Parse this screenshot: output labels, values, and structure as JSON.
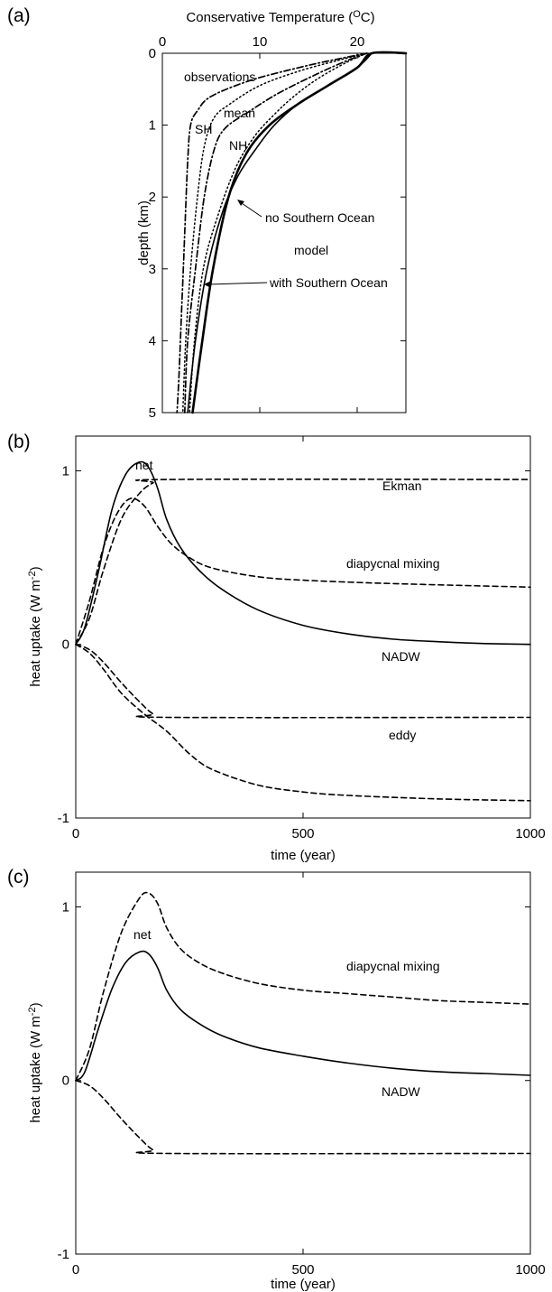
{
  "chart_data": [
    {
      "panel_label": "(a)",
      "type": "line",
      "xlabel": "Conservative Temperature (",
      "xlabel_sup": "O",
      "xlabel_end": "C)",
      "ylabel": "depth (km)",
      "xlim": [
        0,
        25
      ],
      "ylim": [
        0,
        5
      ],
      "xticks": [
        "0",
        "10",
        "20"
      ],
      "xtick_values": [
        0,
        10,
        20
      ],
      "yticks": [
        "0",
        "1",
        "2",
        "3",
        "4",
        "5"
      ],
      "ytick_values": [
        0,
        1,
        2,
        3,
        4,
        5
      ],
      "series": [
        {
          "name": "SH",
          "style": "dashdot",
          "points": [
            [
              21,
              0
            ],
            [
              18,
              0.08
            ],
            [
              14,
              0.2
            ],
            [
              9,
              0.38
            ],
            [
              5,
              0.6
            ],
            [
              3.6,
              0.8
            ],
            [
              2.9,
              1.0
            ],
            [
              2.6,
              1.5
            ],
            [
              2.3,
              2.5
            ],
            [
              2.0,
              3.5
            ],
            [
              1.7,
              4.5
            ],
            [
              1.5,
              5.0
            ]
          ]
        },
        {
          "name": "mean",
          "style": "dotted",
          "points": [
            [
              21,
              0
            ],
            [
              18,
              0.1
            ],
            [
              14,
              0.25
            ],
            [
              10,
              0.45
            ],
            [
              7,
              0.7
            ],
            [
              5.3,
              0.9
            ],
            [
              4.3,
              1.3
            ],
            [
              3.6,
              2.0
            ],
            [
              2.9,
              3.0
            ],
            [
              2.4,
              4.0
            ],
            [
              2.1,
              5.0
            ]
          ]
        },
        {
          "name": "NH",
          "style": "dashdot",
          "points": [
            [
              21,
              0
            ],
            [
              19,
              0.1
            ],
            [
              16,
              0.28
            ],
            [
              12,
              0.55
            ],
            [
              8.8,
              0.82
            ],
            [
              6.4,
              1.05
            ],
            [
              5.3,
              1.35
            ],
            [
              4.3,
              2.0
            ],
            [
              3.4,
              3.0
            ],
            [
              2.6,
              4.0
            ],
            [
              2.3,
              5.0
            ]
          ]
        },
        {
          "name": "observations",
          "style": "dotted",
          "points": [
            [
              21,
              0
            ],
            [
              19,
              0.12
            ],
            [
              16,
              0.35
            ],
            [
              13.5,
              0.6
            ],
            [
              11.5,
              0.85
            ],
            [
              9.5,
              1.15
            ],
            [
              7.5,
              1.6
            ],
            [
              5.6,
              2.3
            ],
            [
              4.2,
              3.0
            ],
            [
              3.3,
              4.0
            ],
            [
              2.8,
              5.0
            ]
          ]
        },
        {
          "name": "no Southern Ocean",
          "style": "solid-thick",
          "points": [
            [
              25,
              0
            ],
            [
              21.5,
              0
            ],
            [
              20,
              0.2
            ],
            [
              17,
              0.45
            ],
            [
              14,
              0.7
            ],
            [
              11,
              1.0
            ],
            [
              8.6,
              1.4
            ],
            [
              6.8,
              2.0
            ],
            [
              5.2,
              3.0
            ],
            [
              4.1,
              4.0
            ],
            [
              3.1,
              5.0
            ]
          ]
        },
        {
          "name": "with Southern Ocean",
          "style": "solid",
          "points": [
            [
              21.5,
              0
            ],
            [
              20,
              0.2
            ],
            [
              17,
              0.45
            ],
            [
              14,
              0.7
            ],
            [
              11.5,
              1.0
            ],
            [
              9.5,
              1.35
            ],
            [
              7.8,
              1.7
            ],
            [
              6.2,
              2.2
            ],
            [
              4.6,
              3.0
            ],
            [
              3.4,
              4.0
            ],
            [
              2.6,
              5.0
            ]
          ]
        }
      ],
      "annotations": {
        "observations": "observations",
        "mean": "mean",
        "SH": "SH",
        "NH": "NH",
        "no_so": "no Southern Ocean",
        "model": "model",
        "with_so": "with Southern Ocean"
      }
    },
    {
      "panel_label": "(b)",
      "type": "line",
      "xlabel": "time (year)",
      "ylabel": "heat uptake (W m",
      "ylabel_sup": "-2",
      "ylabel_end": ")",
      "xlim": [
        0,
        1000
      ],
      "ylim": [
        -1,
        1.2
      ],
      "xticks": [
        "0",
        "500",
        "1000"
      ],
      "xtick_values": [
        0,
        500,
        1000
      ],
      "yticks": [
        "-1",
        "0",
        "1"
      ],
      "ytick_values": [
        -1,
        0,
        1
      ],
      "series": [
        {
          "name": "net",
          "style": "solid",
          "points": [
            [
              0,
              0
            ],
            [
              20,
              0.1
            ],
            [
              50,
              0.42
            ],
            [
              80,
              0.78
            ],
            [
              110,
              0.98
            ],
            [
              140,
              1.05
            ],
            [
              160,
              1.02
            ],
            [
              180,
              0.9
            ],
            [
              200,
              0.72
            ],
            [
              230,
              0.56
            ],
            [
              270,
              0.43
            ],
            [
              320,
              0.32
            ],
            [
              400,
              0.2
            ],
            [
              500,
              0.11
            ],
            [
              600,
              0.06
            ],
            [
              700,
              0.03
            ],
            [
              800,
              0.015
            ],
            [
              900,
              0.005
            ],
            [
              1000,
              0.0
            ]
          ]
        },
        {
          "name": "Ekman",
          "style": "dashed",
          "points": [
            [
              0,
              0
            ],
            [
              30,
              0.15
            ],
            [
              60,
              0.42
            ],
            [
              100,
              0.72
            ],
            [
              140,
              0.87
            ],
            [
              170,
              0.93
            ],
            [
              200,
              0.95
            ],
            [
              1000,
              0.95
            ]
          ]
        },
        {
          "name": "diapycnal mixing",
          "style": "dashed",
          "points": [
            [
              0,
              0
            ],
            [
              30,
              0.25
            ],
            [
              60,
              0.55
            ],
            [
              90,
              0.75
            ],
            [
              120,
              0.84
            ],
            [
              150,
              0.8
            ],
            [
              180,
              0.68
            ],
            [
              210,
              0.58
            ],
            [
              250,
              0.5
            ],
            [
              300,
              0.44
            ],
            [
              400,
              0.39
            ],
            [
              500,
              0.37
            ],
            [
              700,
              0.35
            ],
            [
              1000,
              0.33
            ]
          ]
        },
        {
          "name": "NADW",
          "style": "dashed",
          "points": [
            [
              0,
              0
            ],
            [
              30,
              -0.03
            ],
            [
              60,
              -0.1
            ],
            [
              100,
              -0.22
            ],
            [
              140,
              -0.33
            ],
            [
              170,
              -0.4
            ],
            [
              200,
              -0.42
            ],
            [
              1000,
              -0.42
            ]
          ]
        },
        {
          "name": "eddy",
          "style": "dashed",
          "points": [
            [
              0,
              0
            ],
            [
              30,
              -0.05
            ],
            [
              60,
              -0.14
            ],
            [
              100,
              -0.28
            ],
            [
              150,
              -0.4
            ],
            [
              200,
              -0.5
            ],
            [
              250,
              -0.63
            ],
            [
              300,
              -0.72
            ],
            [
              400,
              -0.81
            ],
            [
              500,
              -0.85
            ],
            [
              600,
              -0.87
            ],
            [
              800,
              -0.89
            ],
            [
              1000,
              -0.9
            ]
          ]
        }
      ],
      "annotations": {
        "net": "net",
        "ekman": "Ekman",
        "diapycnal": "diapycnal mixing",
        "nadw": "NADW",
        "eddy": "eddy"
      }
    },
    {
      "panel_label": "(c)",
      "type": "line",
      "xlabel": "time (year)",
      "ylabel": "heat uptake (W m",
      "ylabel_sup": "-2",
      "ylabel_end": ")",
      "xlim": [
        0,
        1000
      ],
      "ylim": [
        -1,
        1.2
      ],
      "xticks": [
        "0",
        "500",
        "1000"
      ],
      "xtick_values": [
        0,
        500,
        1000
      ],
      "yticks": [
        "-1",
        "0",
        "1"
      ],
      "ytick_values": [
        -1,
        0,
        1
      ],
      "series": [
        {
          "name": "net",
          "style": "solid",
          "points": [
            [
              0,
              0
            ],
            [
              20,
              0.05
            ],
            [
              50,
              0.3
            ],
            [
              80,
              0.53
            ],
            [
              110,
              0.68
            ],
            [
              140,
              0.74
            ],
            [
              160,
              0.73
            ],
            [
              180,
              0.65
            ],
            [
              200,
              0.52
            ],
            [
              230,
              0.41
            ],
            [
              270,
              0.33
            ],
            [
              320,
              0.26
            ],
            [
              400,
              0.19
            ],
            [
              500,
              0.14
            ],
            [
              600,
              0.1
            ],
            [
              700,
              0.07
            ],
            [
              800,
              0.05
            ],
            [
              900,
              0.04
            ],
            [
              1000,
              0.03
            ]
          ]
        },
        {
          "name": "diapycnal mixing",
          "style": "dashed",
          "points": [
            [
              0,
              0
            ],
            [
              30,
              0.18
            ],
            [
              60,
              0.5
            ],
            [
              100,
              0.85
            ],
            [
              140,
              1.05
            ],
            [
              160,
              1.08
            ],
            [
              180,
              1.02
            ],
            [
              200,
              0.88
            ],
            [
              230,
              0.76
            ],
            [
              270,
              0.68
            ],
            [
              320,
              0.62
            ],
            [
              400,
              0.56
            ],
            [
              500,
              0.52
            ],
            [
              600,
              0.5
            ],
            [
              700,
              0.48
            ],
            [
              800,
              0.46
            ],
            [
              900,
              0.45
            ],
            [
              1000,
              0.44
            ]
          ]
        },
        {
          "name": "NADW",
          "style": "dashed",
          "points": [
            [
              0,
              0
            ],
            [
              30,
              -0.03
            ],
            [
              60,
              -0.1
            ],
            [
              100,
              -0.22
            ],
            [
              140,
              -0.33
            ],
            [
              170,
              -0.4
            ],
            [
              200,
              -0.42
            ],
            [
              1000,
              -0.42
            ]
          ]
        }
      ],
      "annotations": {
        "net": "net",
        "diapycnal": "diapycnal mixing",
        "nadw": "NADW"
      }
    }
  ]
}
